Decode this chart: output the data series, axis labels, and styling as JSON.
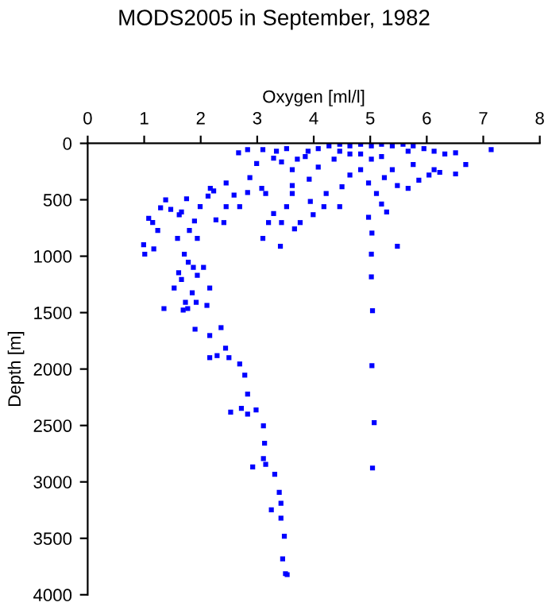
{
  "chart_data": {
    "type": "scatter",
    "title": "MODS2005 in September, 1982",
    "xlabel": "Oxygen [ml/l]",
    "ylabel": "Depth [m]",
    "xlim": [
      0,
      8
    ],
    "xticks": [
      0,
      1,
      2,
      3,
      4,
      5,
      6,
      7,
      8
    ],
    "ylim": [
      4000,
      0
    ],
    "yticks": [
      0,
      500,
      1000,
      1500,
      2000,
      2500,
      3000,
      3500,
      4000
    ],
    "marker": "square",
    "grid": false,
    "legend": false,
    "series": [
      {
        "color": "#0000ff",
        "x": [
          1.35,
          1.73,
          1.77,
          1.69,
          1.92,
          2.11,
          2.16,
          1.85,
          1.53,
          1.9,
          2.36,
          2.16,
          2.16,
          2.29,
          2.44,
          2.5,
          2.69,
          2.78,
          2.83,
          2.72,
          2.53,
          2.83,
          2.98,
          3.11,
          3.13,
          3.11,
          2.92,
          3.15,
          3.31,
          3.39,
          3.42,
          3.25,
          3.42,
          3.48,
          3.45,
          3.5,
          3.53,
          5.02,
          5.04,
          5.03,
          5.07,
          5.04,
          7.14,
          2.83,
          2.67,
          3.1,
          3.34,
          3.52,
          2.99,
          3.29,
          3.43,
          3.62,
          3.71,
          3.9,
          4.08,
          4.27,
          4.46,
          4.64,
          4.83,
          5.02,
          5.2,
          5.39,
          5.58,
          5.76,
          5.95,
          6.13,
          6.32,
          6.51,
          6.69,
          6.51,
          6.23,
          6.04,
          5.86,
          5.67,
          5.48,
          5.25,
          5.11,
          5.2,
          5.29,
          4.97,
          5.48,
          5.03,
          5.02,
          4.83,
          4.64,
          4.5,
          4.46,
          4.22,
          4.18,
          3.99,
          3.94,
          3.92,
          3.76,
          3.66,
          3.52,
          3.43,
          3.29,
          3.2,
          3.1,
          3.15,
          3.08,
          2.87,
          2.83,
          2.69,
          2.59,
          2.45,
          2.41,
          2.45,
          2.27,
          2.23,
          2.13,
          2.17,
          1.99,
          1.89,
          1.75,
          1.62,
          1.59,
          1.66,
          1.94,
          1.8,
          1.47,
          1.38,
          1.29,
          1.15,
          1.08,
          1.24,
          0.99,
          1.17,
          1.01,
          1.71,
          1.78,
          1.87,
          2.05,
          1.61,
          1.94,
          1.66,
          3.41,
          3.62,
          5.02,
          5.39,
          5.76,
          6.13,
          4.36,
          4.08,
          3.85,
          4.64,
          5.2,
          5.67,
          4.46,
          4.83,
          3.62,
          4.97
        ],
        "values": [
          1464,
          1408,
          1464,
          1478,
          1408,
          1436,
          1282,
          1324,
          1282,
          1647,
          1633,
          1703,
          1899,
          1881,
          1815,
          1899,
          1955,
          2054,
          2222,
          2348,
          2382,
          2400,
          2362,
          2503,
          2657,
          2793,
          2868,
          2845,
          2933,
          3092,
          3190,
          3247,
          3322,
          3481,
          3682,
          3813,
          3822,
          1183,
          1483,
          1970,
          2475,
          2877,
          56,
          56,
          84,
          56,
          70,
          47,
          178,
          131,
          164,
          234,
          140,
          70,
          47,
          23,
          9,
          23,
          9,
          23,
          9,
          23,
          9,
          23,
          47,
          70,
          94,
          84,
          187,
          271,
          257,
          281,
          327,
          398,
          374,
          304,
          444,
          538,
          608,
          655,
          912,
          795,
          982,
          234,
          281,
          384,
          561,
          444,
          561,
          632,
          515,
          318,
          702,
          758,
          561,
          702,
          622,
          702,
          842,
          444,
          398,
          304,
          435,
          561,
          458,
          351,
          702,
          561,
          678,
          421,
          468,
          398,
          561,
          688,
          491,
          632,
          842,
          608,
          842,
          772,
          585,
          500,
          571,
          702,
          664,
          772,
          898,
          936,
          982,
          982,
          1053,
          1099,
          1099,
          1146,
          1170,
          1207,
          912,
          444,
          140,
          234,
          187,
          234,
          140,
          211,
          117,
          94,
          117,
          70,
          70,
          94,
          374,
          351
        ]
      }
    ]
  }
}
